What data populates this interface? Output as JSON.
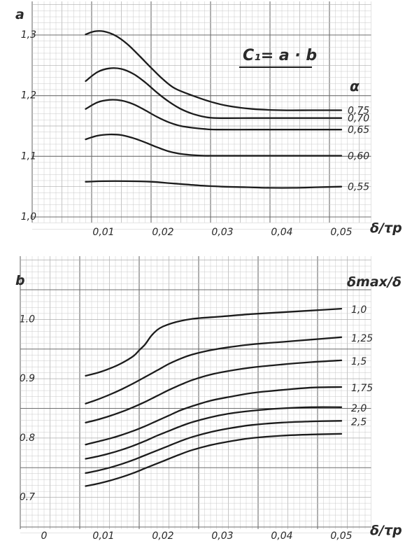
{
  "chart_data": [
    {
      "type": "line",
      "panel_label": "a",
      "formula": "C₁= a · b",
      "legend_title": "α",
      "x_axis_label": "δ/τp",
      "xlim": [
        0,
        0.05
      ],
      "ylim": [
        1.0,
        1.3
      ],
      "x_ticks": [
        "0,01",
        "0,02",
        "0,03",
        "0,04",
        "0,05"
      ],
      "y_ticks": [
        "1,0",
        "1,1",
        "1,2",
        "1,3"
      ],
      "grid": true,
      "series": [
        {
          "name": "0,75",
          "x": [
            0.007,
            0.0085,
            0.01,
            0.012,
            0.014,
            0.016,
            0.018,
            0.02,
            0.022,
            0.025,
            0.028,
            0.031,
            0.035,
            0.04,
            0.045,
            0.05
          ],
          "y": [
            1.301,
            1.306,
            1.306,
            1.299,
            1.285,
            1.266,
            1.246,
            1.227,
            1.212,
            1.2,
            1.19,
            1.183,
            1.178,
            1.176,
            1.176,
            1.176
          ]
        },
        {
          "name": "0,70",
          "x": [
            0.007,
            0.009,
            0.011,
            0.013,
            0.015,
            0.017,
            0.019,
            0.021,
            0.023,
            0.025,
            0.027,
            0.029,
            0.035,
            0.04,
            0.045,
            0.05
          ],
          "y": [
            1.224,
            1.239,
            1.245,
            1.244,
            1.236,
            1.222,
            1.205,
            1.19,
            1.178,
            1.17,
            1.165,
            1.163,
            1.163,
            1.163,
            1.163,
            1.163
          ]
        },
        {
          "name": "0,65",
          "x": [
            0.007,
            0.009,
            0.011,
            0.013,
            0.015,
            0.017,
            0.019,
            0.021,
            0.023,
            0.025,
            0.027,
            0.029,
            0.035,
            0.04,
            0.045,
            0.05
          ],
          "y": [
            1.178,
            1.189,
            1.193,
            1.192,
            1.186,
            1.176,
            1.165,
            1.156,
            1.15,
            1.147,
            1.145,
            1.144,
            1.144,
            1.144,
            1.144,
            1.144
          ]
        },
        {
          "name": "0,60",
          "x": [
            0.007,
            0.009,
            0.011,
            0.013,
            0.015,
            0.017,
            0.019,
            0.021,
            0.023,
            0.025,
            0.027,
            0.029,
            0.035,
            0.04,
            0.045,
            0.05
          ],
          "y": [
            1.128,
            1.134,
            1.136,
            1.135,
            1.13,
            1.123,
            1.115,
            1.108,
            1.104,
            1.102,
            1.101,
            1.101,
            1.101,
            1.101,
            1.101,
            1.101
          ]
        },
        {
          "name": "0,55",
          "x": [
            0.007,
            0.01,
            0.014,
            0.018,
            0.022,
            0.026,
            0.03,
            0.034,
            0.038,
            0.042,
            0.046,
            0.05
          ],
          "y": [
            1.058,
            1.059,
            1.059,
            1.058,
            1.055,
            1.052,
            1.05,
            1.049,
            1.048,
            1.048,
            1.049,
            1.05
          ]
        }
      ]
    },
    {
      "type": "line",
      "panel_label": "b",
      "legend_title": "δmax/δ",
      "x_axis_label": "δ/τp",
      "xlim": [
        0,
        0.05
      ],
      "ylim": [
        0.65,
        1.05
      ],
      "x_ticks": [
        "0",
        "0,01",
        "0,02",
        "0,03",
        "0,04",
        "0,05"
      ],
      "y_ticks": [
        "1.0",
        "0.9",
        "0.8",
        "0.7"
      ],
      "grid": true,
      "series": [
        {
          "name": "1,0",
          "x": [
            0.007,
            0.009,
            0.011,
            0.013,
            0.015,
            0.016,
            0.017,
            0.018,
            0.019,
            0.02,
            0.022,
            0.025,
            0.03,
            0.035,
            0.04,
            0.045,
            0.05
          ],
          "y": [
            0.905,
            0.91,
            0.917,
            0.926,
            0.938,
            0.948,
            0.958,
            0.972,
            0.982,
            0.988,
            0.995,
            1.001,
            1.005,
            1.009,
            1.012,
            1.015,
            1.018
          ]
        },
        {
          "name": "1,25",
          "x": [
            0.007,
            0.009,
            0.011,
            0.013,
            0.015,
            0.017,
            0.019,
            0.021,
            0.023,
            0.025,
            0.028,
            0.031,
            0.035,
            0.04,
            0.045,
            0.05
          ],
          "y": [
            0.858,
            0.865,
            0.873,
            0.882,
            0.892,
            0.903,
            0.914,
            0.925,
            0.934,
            0.941,
            0.948,
            0.953,
            0.958,
            0.962,
            0.966,
            0.97
          ]
        },
        {
          "name": "1,5",
          "x": [
            0.007,
            0.009,
            0.011,
            0.013,
            0.015,
            0.017,
            0.019,
            0.021,
            0.023,
            0.025,
            0.028,
            0.031,
            0.035,
            0.04,
            0.045,
            0.05
          ],
          "y": [
            0.826,
            0.831,
            0.837,
            0.844,
            0.852,
            0.861,
            0.871,
            0.881,
            0.89,
            0.898,
            0.907,
            0.913,
            0.919,
            0.924,
            0.928,
            0.931
          ]
        },
        {
          "name": "1,75",
          "x": [
            0.007,
            0.009,
            0.011,
            0.013,
            0.015,
            0.017,
            0.019,
            0.021,
            0.023,
            0.025,
            0.028,
            0.031,
            0.035,
            0.04,
            0.045,
            0.05
          ],
          "y": [
            0.789,
            0.794,
            0.799,
            0.805,
            0.812,
            0.82,
            0.829,
            0.838,
            0.847,
            0.854,
            0.863,
            0.869,
            0.876,
            0.881,
            0.885,
            0.886
          ]
        },
        {
          "name": "2,0",
          "x": [
            0.007,
            0.009,
            0.011,
            0.013,
            0.015,
            0.017,
            0.019,
            0.021,
            0.023,
            0.025,
            0.028,
            0.031,
            0.035,
            0.04,
            0.045,
            0.05
          ],
          "y": [
            0.765,
            0.769,
            0.774,
            0.78,
            0.787,
            0.795,
            0.804,
            0.812,
            0.82,
            0.827,
            0.835,
            0.841,
            0.846,
            0.85,
            0.852,
            0.852
          ]
        },
        {
          "name": "2,5",
          "x": [
            0.007,
            0.009,
            0.011,
            0.013,
            0.015,
            0.017,
            0.019,
            0.021,
            0.023,
            0.025,
            0.028,
            0.031,
            0.035,
            0.04,
            0.045,
            0.05
          ],
          "y": [
            0.741,
            0.745,
            0.75,
            0.756,
            0.763,
            0.771,
            0.779,
            0.787,
            0.795,
            0.802,
            0.81,
            0.816,
            0.822,
            0.826,
            0.828,
            0.829
          ]
        },
        {
          "name": "",
          "x": [
            0.007,
            0.009,
            0.011,
            0.013,
            0.015,
            0.017,
            0.019,
            0.021,
            0.023,
            0.025,
            0.028,
            0.031,
            0.035,
            0.04,
            0.045,
            0.05
          ],
          "y": [
            0.719,
            0.723,
            0.728,
            0.734,
            0.741,
            0.749,
            0.757,
            0.765,
            0.773,
            0.78,
            0.788,
            0.794,
            0.8,
            0.804,
            0.806,
            0.807
          ]
        }
      ]
    }
  ]
}
